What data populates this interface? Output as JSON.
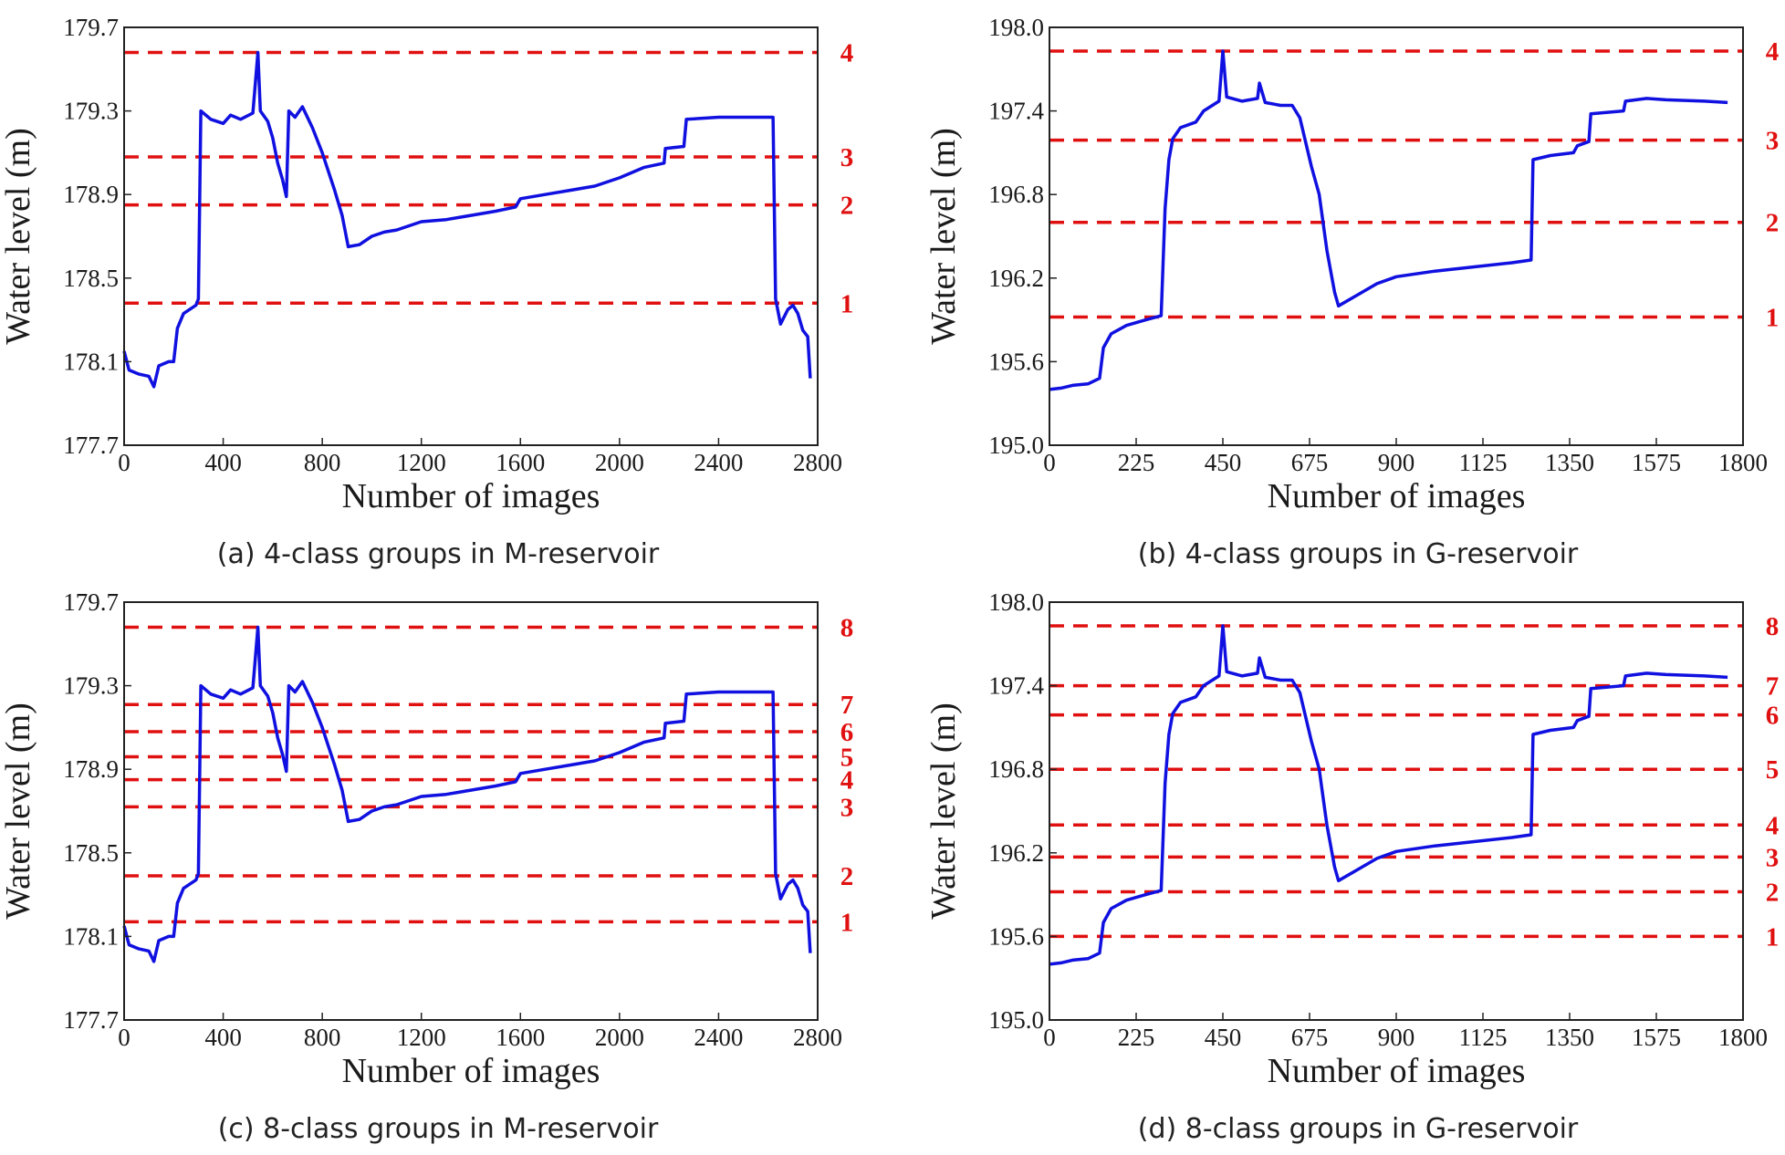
{
  "colors": {
    "series": "#1010e0",
    "thresholds": "#e01010",
    "axis": "#222222"
  },
  "chart_data": [
    {
      "type": "line",
      "caption": "(a) 4-class groups in M-reservoir",
      "xlabel": "Number of images",
      "ylabel": "Water level (m)",
      "xlim": [
        0,
        2800
      ],
      "ylim": [
        177.7,
        179.7
      ],
      "xticks": [
        0,
        400,
        800,
        1200,
        1600,
        2000,
        2400,
        2800
      ],
      "yticks": [
        177.7,
        178.1,
        178.5,
        178.9,
        179.3,
        179.7
      ],
      "class_lines": [
        {
          "label": "1",
          "y": 178.38
        },
        {
          "label": "2",
          "y": 178.85
        },
        {
          "label": "3",
          "y": 179.08
        },
        {
          "label": "4",
          "y": 179.58
        }
      ],
      "series": [
        {
          "values": [
            [
              0,
              178.15
            ],
            [
              20,
              178.06
            ],
            [
              60,
              178.04
            ],
            [
              100,
              178.03
            ],
            [
              120,
              177.98
            ],
            [
              140,
              178.08
            ],
            [
              180,
              178.1
            ],
            [
              200,
              178.1
            ],
            [
              215,
              178.26
            ],
            [
              240,
              178.33
            ],
            [
              290,
              178.37
            ],
            [
              300,
              178.4
            ],
            [
              310,
              179.3
            ],
            [
              350,
              179.26
            ],
            [
              400,
              179.24
            ],
            [
              430,
              179.28
            ],
            [
              470,
              179.26
            ],
            [
              520,
              179.29
            ],
            [
              540,
              179.58
            ],
            [
              550,
              179.3
            ],
            [
              580,
              179.25
            ],
            [
              600,
              179.17
            ],
            [
              620,
              179.05
            ],
            [
              640,
              178.97
            ],
            [
              655,
              178.89
            ],
            [
              665,
              179.3
            ],
            [
              690,
              179.27
            ],
            [
              720,
              179.32
            ],
            [
              760,
              179.22
            ],
            [
              800,
              179.1
            ],
            [
              850,
              178.92
            ],
            [
              880,
              178.8
            ],
            [
              905,
              178.65
            ],
            [
              950,
              178.66
            ],
            [
              1000,
              178.7
            ],
            [
              1050,
              178.72
            ],
            [
              1100,
              178.73
            ],
            [
              1200,
              178.77
            ],
            [
              1300,
              178.78
            ],
            [
              1400,
              178.8
            ],
            [
              1500,
              178.82
            ],
            [
              1580,
              178.84
            ],
            [
              1600,
              178.88
            ],
            [
              1700,
              178.9
            ],
            [
              1800,
              178.92
            ],
            [
              1900,
              178.94
            ],
            [
              2000,
              178.98
            ],
            [
              2100,
              179.03
            ],
            [
              2180,
              179.05
            ],
            [
              2185,
              179.12
            ],
            [
              2260,
              179.13
            ],
            [
              2270,
              179.26
            ],
            [
              2400,
              179.27
            ],
            [
              2500,
              179.27
            ],
            [
              2620,
              179.27
            ],
            [
              2630,
              178.4
            ],
            [
              2650,
              178.28
            ],
            [
              2680,
              178.35
            ],
            [
              2700,
              178.37
            ],
            [
              2720,
              178.33
            ],
            [
              2740,
              178.25
            ],
            [
              2760,
              178.22
            ],
            [
              2770,
              178.02
            ]
          ]
        }
      ]
    },
    {
      "type": "line",
      "caption": "(b) 4-class groups in G-reservoir",
      "xlabel": "Number of images",
      "ylabel": "Water level (m)",
      "xlim": [
        0,
        1800
      ],
      "ylim": [
        195.0,
        198.0
      ],
      "xticks": [
        0,
        225,
        450,
        675,
        900,
        1125,
        1350,
        1575,
        1800
      ],
      "yticks": [
        195.0,
        195.6,
        196.2,
        196.8,
        197.4,
        198.0
      ],
      "class_lines": [
        {
          "label": "1",
          "y": 195.92
        },
        {
          "label": "2",
          "y": 196.6
        },
        {
          "label": "3",
          "y": 197.19
        },
        {
          "label": "4",
          "y": 197.83
        }
      ],
      "series": [
        {
          "values": [
            [
              0,
              195.4
            ],
            [
              30,
              195.41
            ],
            [
              60,
              195.43
            ],
            [
              100,
              195.44
            ],
            [
              130,
              195.48
            ],
            [
              140,
              195.7
            ],
            [
              160,
              195.8
            ],
            [
              200,
              195.86
            ],
            [
              250,
              195.9
            ],
            [
              290,
              195.93
            ],
            [
              300,
              196.7
            ],
            [
              310,
              197.05
            ],
            [
              320,
              197.2
            ],
            [
              340,
              197.28
            ],
            [
              380,
              197.32
            ],
            [
              400,
              197.4
            ],
            [
              440,
              197.47
            ],
            [
              450,
              197.83
            ],
            [
              460,
              197.5
            ],
            [
              500,
              197.47
            ],
            [
              540,
              197.49
            ],
            [
              545,
              197.6
            ],
            [
              560,
              197.46
            ],
            [
              600,
              197.44
            ],
            [
              630,
              197.44
            ],
            [
              650,
              197.35
            ],
            [
              680,
              197.0
            ],
            [
              700,
              196.8
            ],
            [
              720,
              196.4
            ],
            [
              740,
              196.1
            ],
            [
              750,
              196.0
            ],
            [
              800,
              196.08
            ],
            [
              850,
              196.16
            ],
            [
              900,
              196.21
            ],
            [
              1000,
              196.25
            ],
            [
              1100,
              196.28
            ],
            [
              1200,
              196.31
            ],
            [
              1250,
              196.33
            ],
            [
              1255,
              197.05
            ],
            [
              1300,
              197.08
            ],
            [
              1360,
              197.1
            ],
            [
              1370,
              197.15
            ],
            [
              1400,
              197.18
            ],
            [
              1405,
              197.38
            ],
            [
              1490,
              197.4
            ],
            [
              1495,
              197.47
            ],
            [
              1550,
              197.49
            ],
            [
              1600,
              197.48
            ],
            [
              1700,
              197.47
            ],
            [
              1760,
              197.46
            ]
          ]
        }
      ]
    },
    {
      "type": "line",
      "caption": "(c) 8-class groups in M-reservoir",
      "xlabel": "Number of images",
      "ylabel": "Water level (m)",
      "xlim": [
        0,
        2800
      ],
      "ylim": [
        177.7,
        179.7
      ],
      "xticks": [
        0,
        400,
        800,
        1200,
        1600,
        2000,
        2400,
        2800
      ],
      "yticks": [
        177.7,
        178.1,
        178.5,
        178.9,
        179.3,
        179.7
      ],
      "class_lines": [
        {
          "label": "1",
          "y": 178.17
        },
        {
          "label": "2",
          "y": 178.39
        },
        {
          "label": "3",
          "y": 178.72
        },
        {
          "label": "4",
          "y": 178.85
        },
        {
          "label": "5",
          "y": 178.96
        },
        {
          "label": "6",
          "y": 179.08
        },
        {
          "label": "7",
          "y": 179.21
        },
        {
          "label": "8",
          "y": 179.58
        }
      ],
      "series": [
        {
          "values": [
            [
              0,
              178.15
            ],
            [
              20,
              178.06
            ],
            [
              60,
              178.04
            ],
            [
              100,
              178.03
            ],
            [
              120,
              177.98
            ],
            [
              140,
              178.08
            ],
            [
              180,
              178.1
            ],
            [
              200,
              178.1
            ],
            [
              215,
              178.26
            ],
            [
              240,
              178.33
            ],
            [
              290,
              178.37
            ],
            [
              300,
              178.4
            ],
            [
              310,
              179.3
            ],
            [
              350,
              179.26
            ],
            [
              400,
              179.24
            ],
            [
              430,
              179.28
            ],
            [
              470,
              179.26
            ],
            [
              520,
              179.29
            ],
            [
              540,
              179.58
            ],
            [
              550,
              179.3
            ],
            [
              580,
              179.25
            ],
            [
              600,
              179.17
            ],
            [
              620,
              179.05
            ],
            [
              640,
              178.97
            ],
            [
              655,
              178.89
            ],
            [
              665,
              179.3
            ],
            [
              690,
              179.27
            ],
            [
              720,
              179.32
            ],
            [
              760,
              179.22
            ],
            [
              800,
              179.1
            ],
            [
              850,
              178.92
            ],
            [
              880,
              178.8
            ],
            [
              905,
              178.65
            ],
            [
              950,
              178.66
            ],
            [
              1000,
              178.7
            ],
            [
              1050,
              178.72
            ],
            [
              1100,
              178.73
            ],
            [
              1200,
              178.77
            ],
            [
              1300,
              178.78
            ],
            [
              1400,
              178.8
            ],
            [
              1500,
              178.82
            ],
            [
              1580,
              178.84
            ],
            [
              1600,
              178.88
            ],
            [
              1700,
              178.9
            ],
            [
              1800,
              178.92
            ],
            [
              1900,
              178.94
            ],
            [
              2000,
              178.98
            ],
            [
              2100,
              179.03
            ],
            [
              2180,
              179.05
            ],
            [
              2185,
              179.12
            ],
            [
              2260,
              179.13
            ],
            [
              2270,
              179.26
            ],
            [
              2400,
              179.27
            ],
            [
              2500,
              179.27
            ],
            [
              2620,
              179.27
            ],
            [
              2630,
              178.4
            ],
            [
              2650,
              178.28
            ],
            [
              2680,
              178.35
            ],
            [
              2700,
              178.37
            ],
            [
              2720,
              178.33
            ],
            [
              2740,
              178.25
            ],
            [
              2760,
              178.22
            ],
            [
              2770,
              178.02
            ]
          ]
        }
      ]
    },
    {
      "type": "line",
      "caption": "(d) 8-class groups in G-reservoir",
      "xlabel": "Number of images",
      "ylabel": "Water level (m)",
      "xlim": [
        0,
        1800
      ],
      "ylim": [
        195.0,
        198.0
      ],
      "xticks": [
        0,
        225,
        450,
        675,
        900,
        1125,
        1350,
        1575,
        1800
      ],
      "yticks": [
        195.0,
        195.6,
        196.2,
        196.8,
        197.4,
        198.0
      ],
      "class_lines": [
        {
          "label": "1",
          "y": 195.6
        },
        {
          "label": "2",
          "y": 195.92
        },
        {
          "label": "3",
          "y": 196.17
        },
        {
          "label": "4",
          "y": 196.4
        },
        {
          "label": "5",
          "y": 196.8
        },
        {
          "label": "6",
          "y": 197.19
        },
        {
          "label": "7",
          "y": 197.4
        },
        {
          "label": "8",
          "y": 197.83
        }
      ],
      "series": [
        {
          "values": [
            [
              0,
              195.4
            ],
            [
              30,
              195.41
            ],
            [
              60,
              195.43
            ],
            [
              100,
              195.44
            ],
            [
              130,
              195.48
            ],
            [
              140,
              195.7
            ],
            [
              160,
              195.8
            ],
            [
              200,
              195.86
            ],
            [
              250,
              195.9
            ],
            [
              290,
              195.93
            ],
            [
              300,
              196.7
            ],
            [
              310,
              197.05
            ],
            [
              320,
              197.2
            ],
            [
              340,
              197.28
            ],
            [
              380,
              197.32
            ],
            [
              400,
              197.4
            ],
            [
              440,
              197.47
            ],
            [
              450,
              197.83
            ],
            [
              460,
              197.5
            ],
            [
              500,
              197.47
            ],
            [
              540,
              197.49
            ],
            [
              545,
              197.6
            ],
            [
              560,
              197.46
            ],
            [
              600,
              197.44
            ],
            [
              630,
              197.44
            ],
            [
              650,
              197.35
            ],
            [
              680,
              197.0
            ],
            [
              700,
              196.8
            ],
            [
              720,
              196.4
            ],
            [
              740,
              196.1
            ],
            [
              750,
              196.0
            ],
            [
              800,
              196.08
            ],
            [
              850,
              196.16
            ],
            [
              900,
              196.21
            ],
            [
              1000,
              196.25
            ],
            [
              1100,
              196.28
            ],
            [
              1200,
              196.31
            ],
            [
              1250,
              196.33
            ],
            [
              1255,
              197.05
            ],
            [
              1300,
              197.08
            ],
            [
              1360,
              197.1
            ],
            [
              1370,
              197.15
            ],
            [
              1400,
              197.18
            ],
            [
              1405,
              197.38
            ],
            [
              1490,
              197.4
            ],
            [
              1495,
              197.47
            ],
            [
              1550,
              197.49
            ],
            [
              1600,
              197.48
            ],
            [
              1700,
              197.47
            ],
            [
              1760,
              197.46
            ]
          ]
        }
      ]
    }
  ]
}
